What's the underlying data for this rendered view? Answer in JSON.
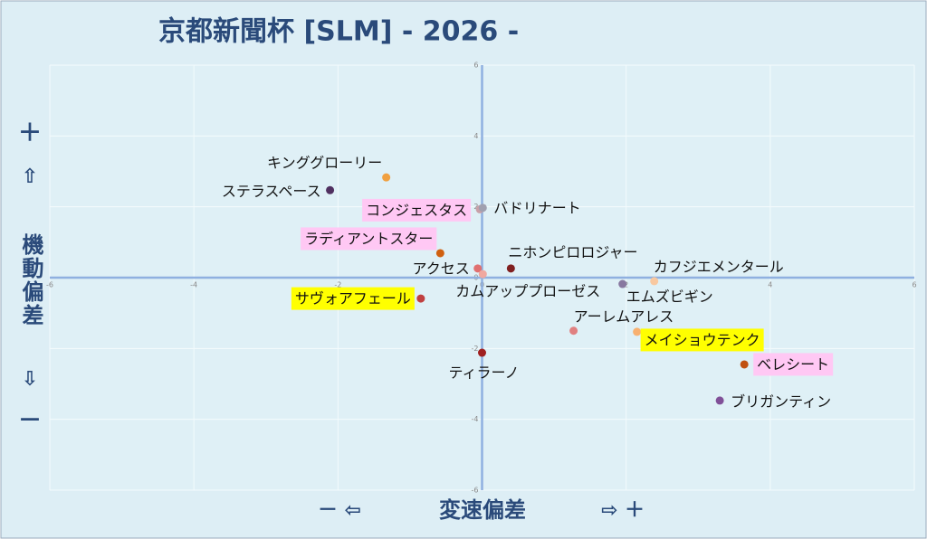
{
  "chart_data": {
    "type": "scatter",
    "title": "京都新聞杯 [SLM]  - 2026 -",
    "x_label": "変速偏差",
    "x_label_left": "－ ⇦",
    "x_label_right": "⇨ ＋",
    "y_label": "機動偏差",
    "y_label_plus": "＋",
    "y_label_up": "⇧",
    "y_label_down": "⇩",
    "y_label_minus": "－",
    "xlim": [
      -6,
      6
    ],
    "ylim": [
      -6,
      6
    ],
    "xticks": [
      -6,
      -4,
      -2,
      0,
      2,
      4,
      6
    ],
    "yticks": [
      -6,
      -4,
      -2,
      0,
      2,
      4,
      6
    ],
    "grid": true,
    "series": [
      {
        "name": "キンググローリー",
        "color": "#f0a040",
        "x": [
          -1.33
        ],
        "values": [
          2.83
        ]
      },
      {
        "name": "ステラスペース",
        "color": "#503060",
        "x": [
          -2.11
        ],
        "values": [
          2.47
        ]
      },
      {
        "name": "コンジェスタス",
        "color": "#c8a0a8",
        "x": [
          -0.03
        ],
        "values": [
          1.93
        ],
        "label_bg": "#ffc8f4"
      },
      {
        "name": "バドリナート",
        "color": "#a0a0b0",
        "x": [
          0.01
        ],
        "values": [
          1.97
        ]
      },
      {
        "name": "ラディアントスター",
        "color": "#d06010",
        "x": [
          -0.58
        ],
        "values": [
          0.69
        ],
        "label_bg": "#ffc8f4"
      },
      {
        "name": "アクセス",
        "color": "#e07070",
        "x": [
          -0.06
        ],
        "values": [
          0.26
        ]
      },
      {
        "name": "カムアッププローゼス",
        "color": "#f0a8a0",
        "x": [
          0.01
        ],
        "values": [
          0.1
        ]
      },
      {
        "name": "ニホンピロロジャー",
        "color": "#802020",
        "x": [
          0.4
        ],
        "values": [
          0.26
        ]
      },
      {
        "name": "サヴォアフェール",
        "color": "#c04040",
        "x": [
          -0.85
        ],
        "values": [
          -0.59
        ],
        "label_bg": "#ffff00"
      },
      {
        "name": "カフジエメンタール",
        "color": "#f8c8a0",
        "x": [
          2.39
        ],
        "values": [
          -0.1
        ]
      },
      {
        "name": "エムズビギン",
        "color": "#8878a0",
        "x": [
          1.95
        ],
        "values": [
          -0.18
        ]
      },
      {
        "name": "アーレムアレス",
        "color": "#e08080",
        "x": [
          1.27
        ],
        "values": [
          -1.5
        ]
      },
      {
        "name": "メイショウテンク",
        "color": "#f8b070",
        "x": [
          2.15
        ],
        "values": [
          -1.53
        ],
        "label_bg": "#ffff00"
      },
      {
        "name": "ベレシート",
        "color": "#c05010",
        "x": [
          3.64
        ],
        "values": [
          -2.45
        ],
        "label_bg": "#ffc8f4"
      },
      {
        "name": "ブリガンティン",
        "color": "#805098",
        "x": [
          3.3
        ],
        "values": [
          -3.47
        ]
      },
      {
        "name": "ティラーノ",
        "color": "#a02020",
        "x": [
          0.0
        ],
        "values": [
          -2.12
        ]
      }
    ]
  }
}
